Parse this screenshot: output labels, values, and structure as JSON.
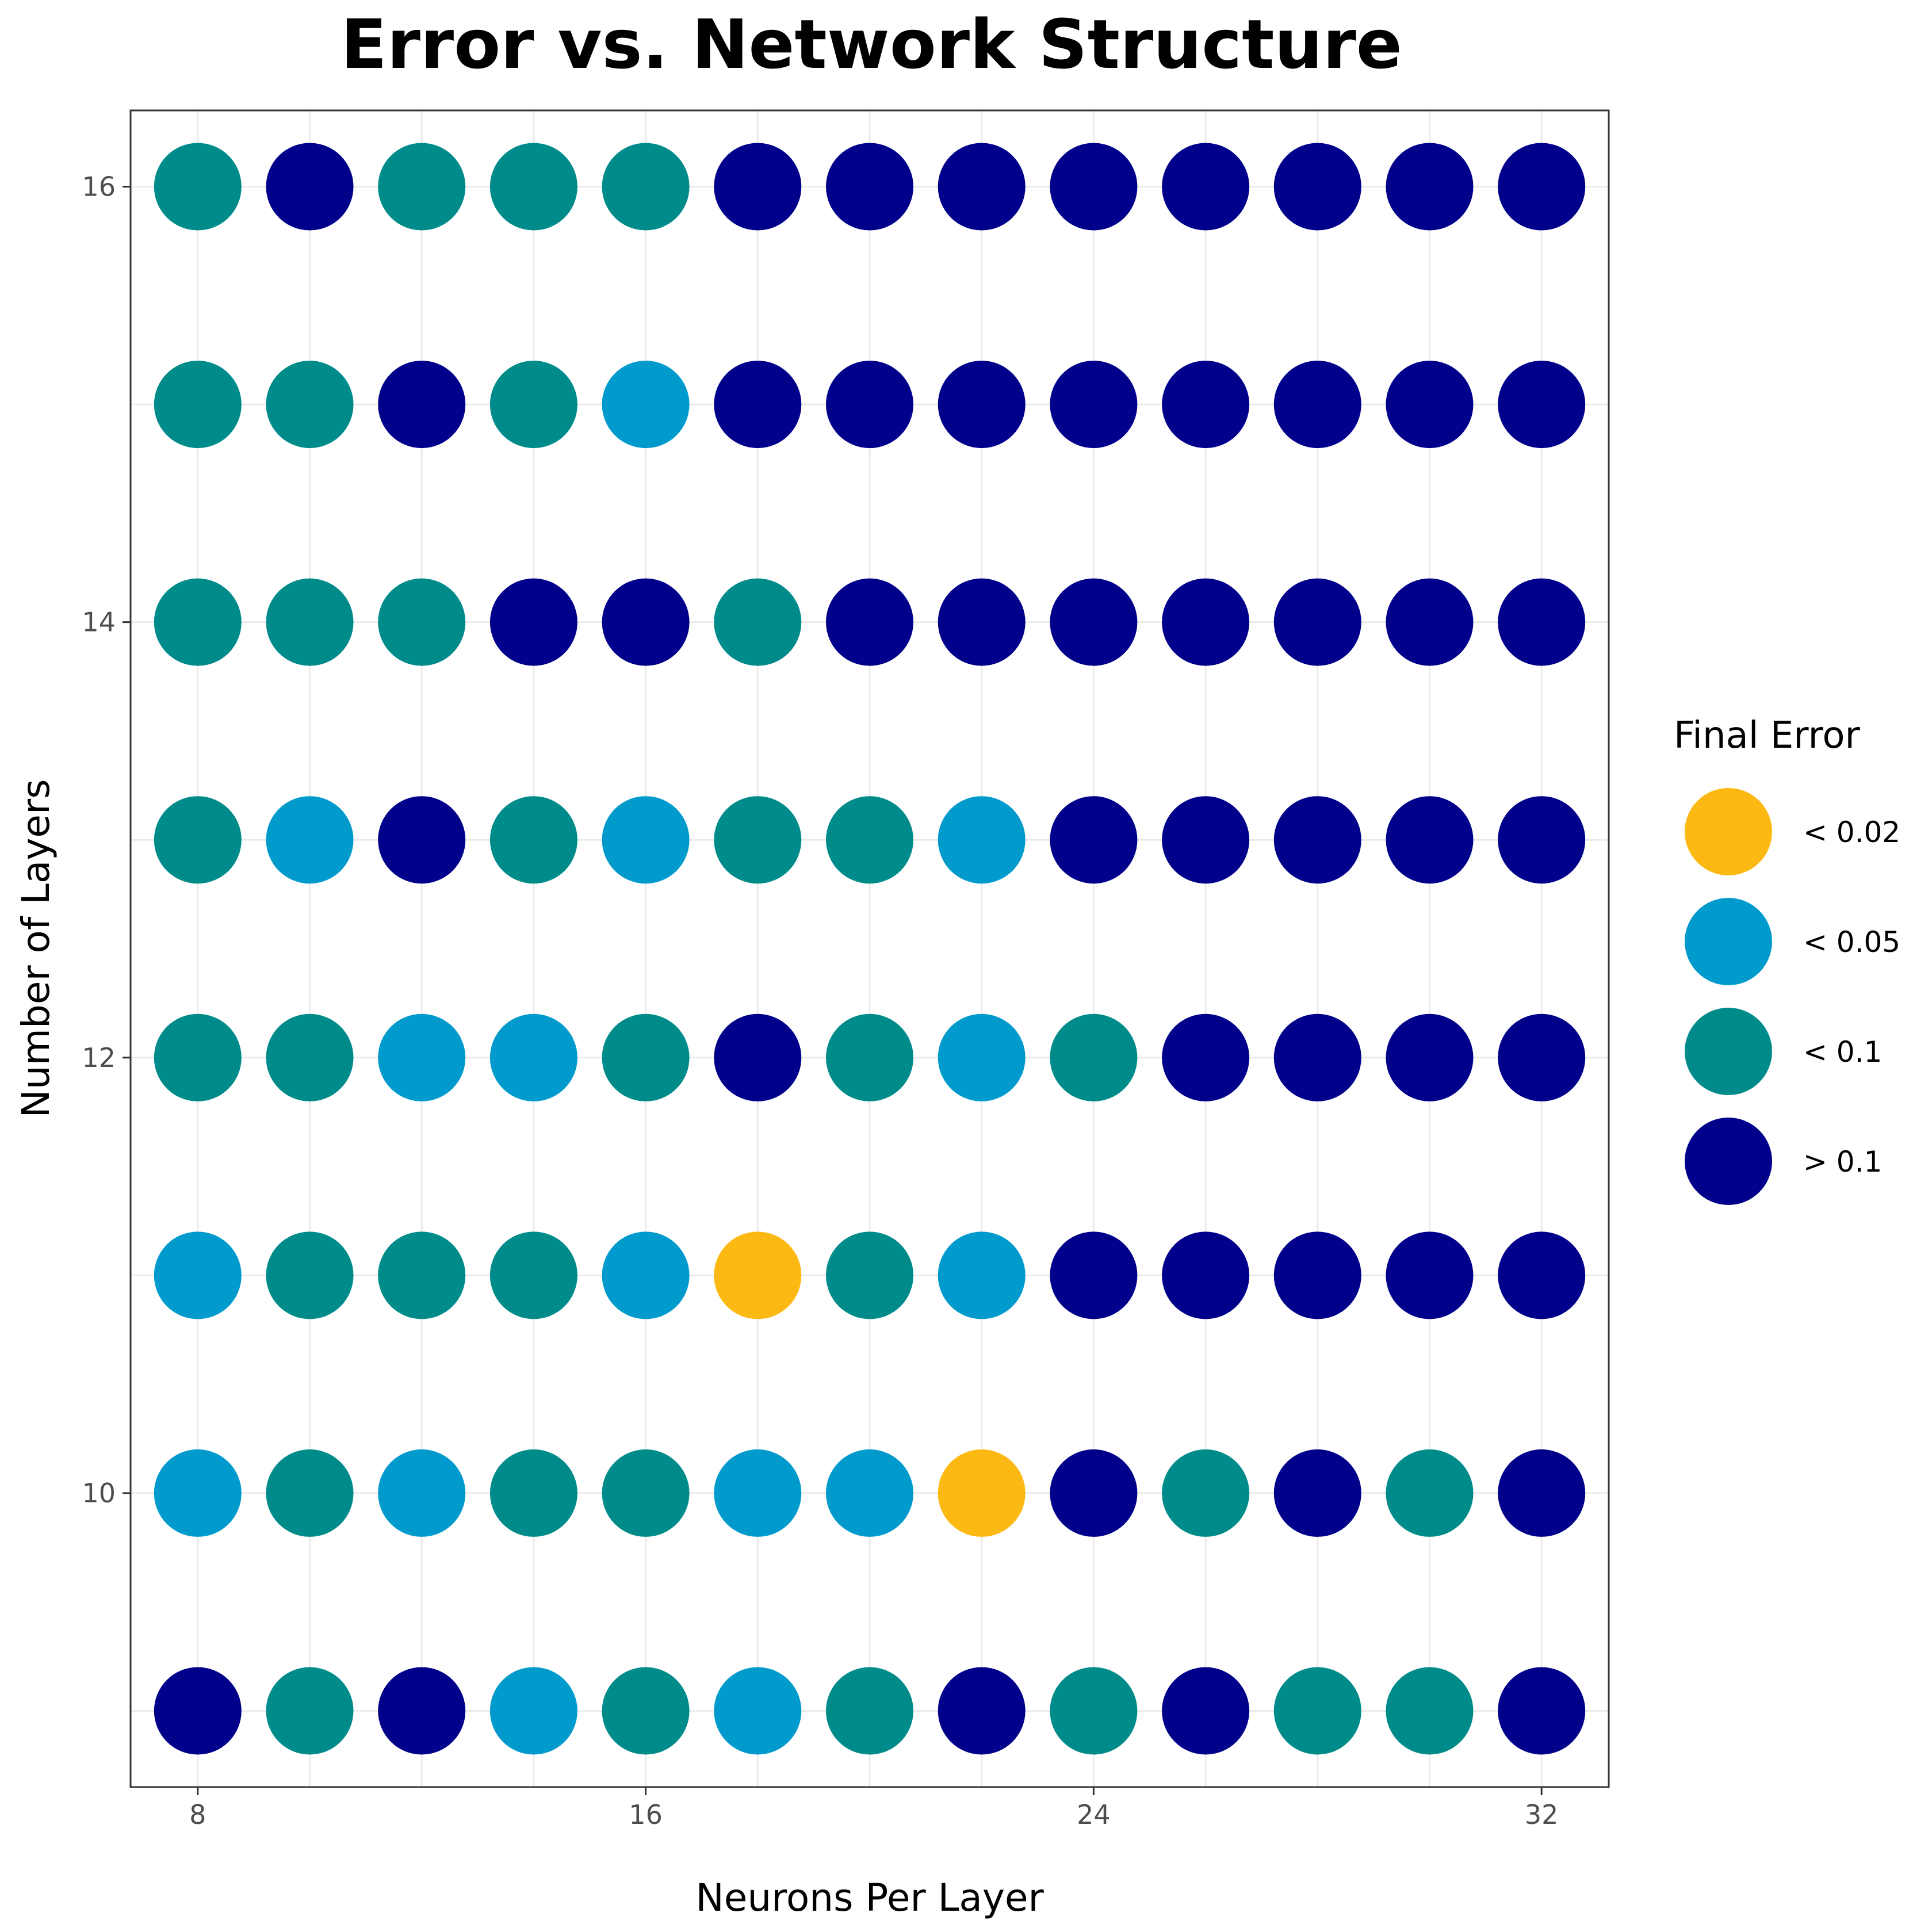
{
  "chart_data": {
    "type": "scatter",
    "title": "Error vs. Network Structure",
    "xlabel": "Neurons Per Layer",
    "ylabel": "Number of Layers",
    "xlim": [
      6.8,
      33.2
    ],
    "ylim": [
      8.65,
      16.35
    ],
    "x_ticks": [
      8,
      16,
      24,
      32
    ],
    "y_ticks": [
      10,
      12,
      14,
      16
    ],
    "grid": true,
    "legend_title": "Final Error",
    "legend_placement": "right",
    "categories": [
      {
        "label": "< 0.02",
        "color": "#FDB913"
      },
      {
        "label": "< 0.05",
        "color": "#009ACD"
      },
      {
        "label": "< 0.1",
        "color": "#008B8B"
      },
      {
        "label": "> 0.1",
        "color": "#00008B"
      }
    ],
    "x": [
      8,
      10,
      12,
      14,
      16,
      18,
      20,
      22,
      24,
      26,
      28,
      30,
      32
    ],
    "rows": [
      {
        "y": 16,
        "classes": [
          "< 0.1",
          "> 0.1",
          "< 0.1",
          "< 0.1",
          "< 0.1",
          "> 0.1",
          "> 0.1",
          "> 0.1",
          "> 0.1",
          "> 0.1",
          "> 0.1",
          "> 0.1",
          "> 0.1"
        ]
      },
      {
        "y": 15,
        "classes": [
          "< 0.1",
          "< 0.1",
          "> 0.1",
          "< 0.1",
          "< 0.05",
          "> 0.1",
          "> 0.1",
          "> 0.1",
          "> 0.1",
          "> 0.1",
          "> 0.1",
          "> 0.1",
          "> 0.1"
        ]
      },
      {
        "y": 14,
        "classes": [
          "< 0.1",
          "< 0.1",
          "< 0.1",
          "> 0.1",
          "> 0.1",
          "< 0.1",
          "> 0.1",
          "> 0.1",
          "> 0.1",
          "> 0.1",
          "> 0.1",
          "> 0.1",
          "> 0.1"
        ]
      },
      {
        "y": 13,
        "classes": [
          "< 0.1",
          "< 0.05",
          "> 0.1",
          "< 0.1",
          "< 0.05",
          "< 0.1",
          "< 0.1",
          "< 0.05",
          "> 0.1",
          "> 0.1",
          "> 0.1",
          "> 0.1",
          "> 0.1"
        ]
      },
      {
        "y": 12,
        "classes": [
          "< 0.1",
          "< 0.1",
          "< 0.05",
          "< 0.05",
          "< 0.1",
          "> 0.1",
          "< 0.1",
          "< 0.05",
          "< 0.1",
          "> 0.1",
          "> 0.1",
          "> 0.1",
          "> 0.1"
        ]
      },
      {
        "y": 11,
        "classes": [
          "< 0.05",
          "< 0.1",
          "< 0.1",
          "< 0.1",
          "< 0.05",
          "< 0.02",
          "< 0.1",
          "< 0.05",
          "> 0.1",
          "> 0.1",
          "> 0.1",
          "> 0.1",
          "> 0.1"
        ]
      },
      {
        "y": 10,
        "classes": [
          "< 0.05",
          "< 0.1",
          "< 0.05",
          "< 0.1",
          "< 0.1",
          "< 0.05",
          "< 0.05",
          "< 0.02",
          "> 0.1",
          "< 0.1",
          "> 0.1",
          "< 0.1",
          "> 0.1"
        ]
      },
      {
        "y": 9,
        "classes": [
          "> 0.1",
          "< 0.1",
          "> 0.1",
          "< 0.05",
          "< 0.1",
          "< 0.05",
          "< 0.1",
          "> 0.1",
          "< 0.1",
          "> 0.1",
          "< 0.1",
          "< 0.1",
          "> 0.1"
        ]
      }
    ]
  }
}
